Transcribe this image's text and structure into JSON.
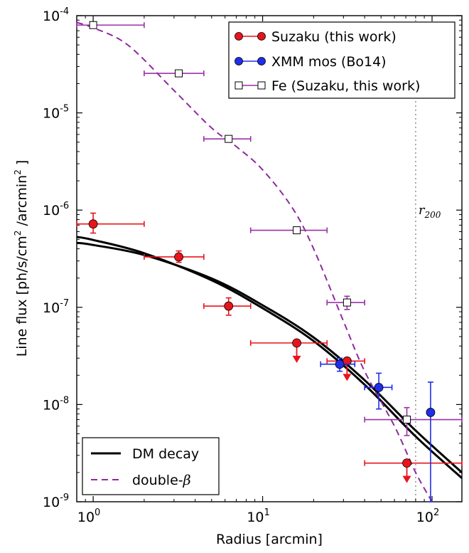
{
  "chart_data": {
    "type": "scatter",
    "xlabel": "Radius [arcmin]",
    "ylabel": "Line flux [ph/s/cm",
    "ylabel_sup": "2",
    "ylabel_mid": " /arcmin",
    "ylabel_end": " ]",
    "xscale": "log",
    "yscale": "log",
    "xlim": [
      0.8,
      150
    ],
    "ylim": [
      1e-09,
      0.0001
    ],
    "x_ticks": [
      {
        "value": 1,
        "base": "10",
        "exp": "0"
      },
      {
        "value": 10,
        "base": "10",
        "exp": "1"
      },
      {
        "value": 100,
        "base": "10",
        "exp": "2"
      }
    ],
    "y_ticks": [
      {
        "value": 1e-09,
        "base": "10",
        "exp": "-9"
      },
      {
        "value": 1e-08,
        "base": "10",
        "exp": "-8"
      },
      {
        "value": 1e-07,
        "base": "10",
        "exp": "-7"
      },
      {
        "value": 1e-06,
        "base": "10",
        "exp": "-6"
      },
      {
        "value": 1e-05,
        "base": "10",
        "exp": "-5"
      },
      {
        "value": 0.0001,
        "base": "10",
        "exp": "-4"
      }
    ],
    "r200": {
      "x": 80,
      "label_base": "r",
      "label_sub": "200"
    },
    "legend_upper": {
      "placement": "top-right",
      "entries": [
        {
          "label": "Suzaku (this work)",
          "color": "#e8141c",
          "marker": "circle"
        },
        {
          "label": "XMM mos (Bo14)",
          "color": "#1f2ee8",
          "marker": "circle"
        },
        {
          "label": "Fe (Suzaku, this work)",
          "color": "#9b30a8",
          "marker": "square"
        }
      ]
    },
    "legend_lower": {
      "placement": "bottom-left",
      "entries": [
        {
          "label": "DM decay",
          "color": "#000000",
          "style": "solid"
        },
        {
          "label": "double-",
          "label_greek": "β",
          "color": "#8e2a9e",
          "style": "dashed"
        }
      ]
    },
    "series": [
      {
        "name": "Suzaku (this work)",
        "color": "#e8141c",
        "marker": "circle",
        "points": [
          {
            "x": 1.0,
            "y": 7.2e-07,
            "xerr": [
              0.8,
              2.0
            ],
            "yerr": [
              5.8e-07,
              9.3e-07
            ],
            "upper_limit": false
          },
          {
            "x": 3.2,
            "y": 3.3e-07,
            "xerr": [
              2.0,
              4.5
            ],
            "yerr": [
              2.9e-07,
              3.8e-07
            ],
            "upper_limit": false
          },
          {
            "x": 6.3,
            "y": 1.03e-07,
            "xerr": [
              4.5,
              8.5
            ],
            "yerr": [
              8.3e-08,
              1.25e-07
            ],
            "upper_limit": false
          },
          {
            "x": 15.9,
            "y": 4.3e-08,
            "xerr": [
              8.5,
              24
            ],
            "yerr": null,
            "upper_limit": true
          },
          {
            "x": 31.5,
            "y": 2.8e-08,
            "xerr": [
              24,
              40
            ],
            "yerr": null,
            "upper_limit": true
          },
          {
            "x": 71,
            "y": 2.5e-09,
            "xerr": [
              40,
              150
            ],
            "yerr": null,
            "upper_limit": true
          }
        ]
      },
      {
        "name": "XMM mos (Bo14)",
        "color": "#1f2ee8",
        "marker": "circle",
        "points": [
          {
            "x": 28.5,
            "y": 2.6e-08,
            "xerr": [
              22,
              35
            ],
            "yerr": [
              2.2e-08,
              3e-08
            ],
            "upper_limit": false
          },
          {
            "x": 48.5,
            "y": 1.5e-08,
            "xerr": [
              40,
              58
            ],
            "yerr": [
              9e-09,
              2.1e-08
            ],
            "upper_limit": false
          },
          {
            "x": 98,
            "y": 8.3e-09,
            "xerr": null,
            "yerr": [
              1e-09,
              1.7e-08
            ],
            "upper_limit": false
          }
        ]
      },
      {
        "name": "Fe (Suzaku, this work)",
        "color": "#9b30a8",
        "marker": "square",
        "points": [
          {
            "x": 1.0,
            "y": 8e-05,
            "xerr": [
              0.8,
              2.0
            ],
            "yerr": null
          },
          {
            "x": 3.2,
            "y": 2.55e-05,
            "xerr": [
              2.0,
              4.5
            ],
            "yerr": null
          },
          {
            "x": 6.3,
            "y": 5.4e-06,
            "xerr": [
              4.5,
              8.5
            ],
            "yerr": null
          },
          {
            "x": 15.9,
            "y": 6.2e-07,
            "xerr": [
              8.5,
              24
            ],
            "yerr": null
          },
          {
            "x": 31.5,
            "y": 1.12e-07,
            "xerr": [
              24,
              40
            ],
            "yerr": [
              9.5e-08,
              1.3e-07
            ]
          },
          {
            "x": 71,
            "y": 7e-09,
            "xerr": [
              40,
              150
            ],
            "yerr": [
              4.8e-09,
              9.3e-09
            ]
          }
        ]
      }
    ],
    "curves": [
      {
        "name": "DM decay",
        "color": "#000000",
        "style": "solid",
        "points": [
          [
            0.8,
            5.3e-07
          ],
          [
            1.0,
            4.93e-07
          ],
          [
            2.0,
            3.6e-07
          ],
          [
            5.0,
            1.9e-07
          ],
          [
            10.0,
            9.8e-08
          ],
          [
            20.0,
            4.5e-08
          ],
          [
            40.0,
            1.6e-08
          ],
          [
            80.0,
            4.7e-09
          ],
          [
            150.0,
            1.75e-09
          ]
        ]
      },
      {
        "name": "DM decay",
        "color": "#000000",
        "style": "solid",
        "points": [
          [
            0.8,
            4.6e-07
          ],
          [
            1.0,
            4.38e-07
          ],
          [
            2.0,
            3.45e-07
          ],
          [
            5.0,
            1.98e-07
          ],
          [
            10.0,
            1.05e-07
          ],
          [
            20.0,
            4.9e-08
          ],
          [
            40.0,
            1.78e-08
          ],
          [
            80.0,
            5.4e-09
          ],
          [
            150.0,
            2e-09
          ]
        ]
      },
      {
        "name": "double-β",
        "color": "#8e2a9e",
        "style": "dashed",
        "points": [
          [
            0.8,
            8.5e-05
          ],
          [
            1.0,
            7.5e-05
          ],
          [
            1.6,
            5e-05
          ],
          [
            3.0,
            1.7e-05
          ],
          [
            5.0,
            7e-06
          ],
          [
            7.0,
            4.5e-06
          ],
          [
            10.0,
            2.6e-06
          ],
          [
            15.0,
            1.05e-06
          ],
          [
            20.0,
            4e-07
          ],
          [
            30.0,
            7.2e-08
          ],
          [
            40.0,
            2.2e-08
          ],
          [
            60.0,
            6e-09
          ],
          [
            80.0,
            2e-09
          ],
          [
            100.0,
            1e-09
          ]
        ]
      }
    ]
  }
}
